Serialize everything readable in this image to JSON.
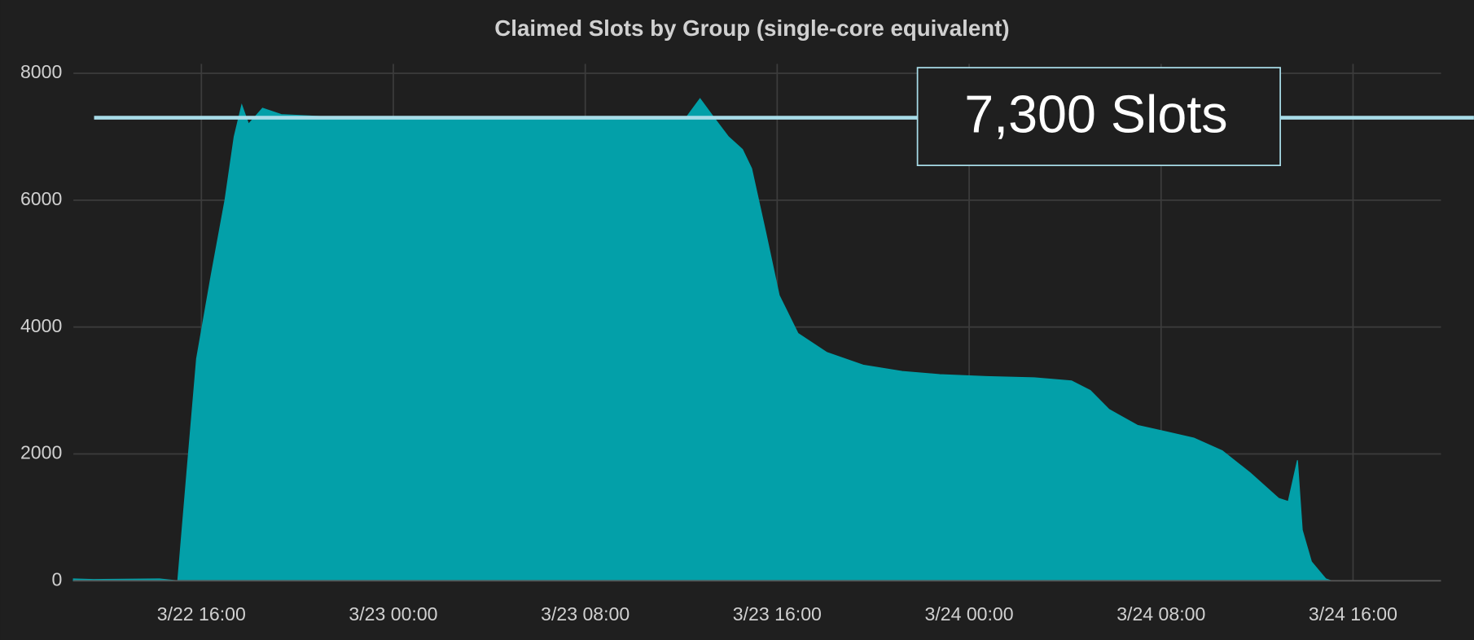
{
  "chart_data": {
    "type": "area",
    "title": "Claimed Slots by Group (single-core equivalent)",
    "color": "#03a0a9",
    "x": [
      "3/22 10:40",
      "3/22 11:30",
      "3/22 14:15",
      "3/22 15:01",
      "3/22 15:25",
      "3/22 15:48",
      "3/22 16:24",
      "3/22 16:59",
      "3/22 17:22",
      "3/22 17:41",
      "3/22 17:58",
      "3/22 18:33",
      "3/22 19:20",
      "3/22 22:00",
      "3/23 00:00",
      "3/23 04:00",
      "3/23 08:00",
      "3/23 10:00",
      "3/23 12:12",
      "3/23 12:47",
      "3/23 13:22",
      "3/23 13:58",
      "3/23 14:33",
      "3/23 14:56",
      "3/23 15:31",
      "3/23 16:05",
      "3/23 16:52",
      "3/23 18:04",
      "3/23 19:35",
      "3/23 21:13",
      "3/23 22:47",
      "3/24 00:44",
      "3/24 02:42",
      "3/24 04:16",
      "3/24 05:03",
      "3/24 05:50",
      "3/24 07:01",
      "3/24 08:12",
      "3/24 09:22",
      "3/24 10:33",
      "3/24 11:43",
      "3/24 12:54",
      "3/24 13:18",
      "3/24 13:41",
      "3/24 13:53",
      "3/24 14:16",
      "3/24 14:52",
      "3/24 15:06"
    ],
    "values": [
      30,
      20,
      30,
      0,
      1800,
      3500,
      4800,
      6000,
      7000,
      7500,
      7200,
      7450,
      7350,
      7300,
      7300,
      7290,
      7310,
      7280,
      7300,
      7600,
      7300,
      7000,
      6800,
      6500,
      5500,
      4500,
      3900,
      3600,
      3400,
      3300,
      3250,
      3220,
      3200,
      3150,
      3000,
      2700,
      2450,
      2350,
      2250,
      2050,
      1700,
      1300,
      1250,
      1900,
      800,
      300,
      30,
      0
    ],
    "xlim": [
      "3/22 10:40",
      "3/24 19:40"
    ],
    "xticks": [
      "3/22 16:00",
      "3/23 00:00",
      "3/23 08:00",
      "3/23 16:00",
      "3/24 00:00",
      "3/24 08:00",
      "3/24 16:00"
    ],
    "ylim": [
      0,
      8000
    ],
    "yticks": [
      0,
      2000,
      4000,
      6000,
      8000
    ],
    "grid": true,
    "annotation": {
      "text": "7,300 Slots",
      "value": 7300,
      "color": "#a8dce8"
    }
  }
}
